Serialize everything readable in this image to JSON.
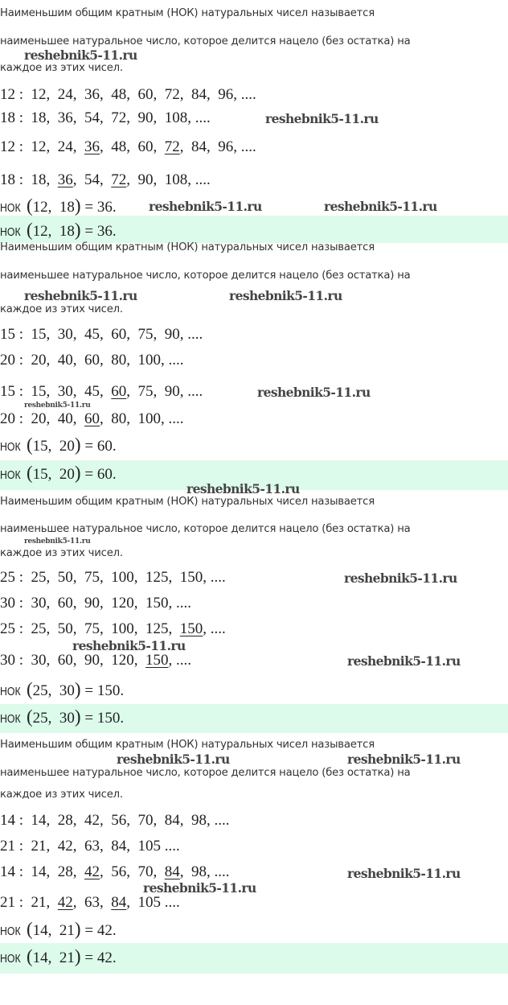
{
  "intro": [
    "Наименьшим общим кратным (НОК) натуральных чисел называется",
    "наименьшее натуральное число, которое делится нацело (без остатка) на",
    "каждое из этих чисел."
  ],
  "watermark": "reshebnik5-11.ru",
  "highlight_color": "#dcfbeb",
  "blocks": [
    {
      "rows": [
        {
          "label": "12",
          "items": [
            {
              "t": "12"
            },
            {
              "t": "24"
            },
            {
              "t": "36"
            },
            {
              "t": "48"
            },
            {
              "t": "60"
            },
            {
              "t": "72"
            },
            {
              "t": "84"
            },
            {
              "t": "96"
            }
          ],
          "end": ", ...."
        },
        {
          "label": "18",
          "items": [
            {
              "t": "18"
            },
            {
              "t": "36"
            },
            {
              "t": "54"
            },
            {
              "t": "72"
            },
            {
              "t": "90"
            },
            {
              "t": "108"
            }
          ],
          "end": ", ...."
        },
        {
          "label": "12",
          "items": [
            {
              "t": "12"
            },
            {
              "t": "24"
            },
            {
              "t": "36",
              "u": true
            },
            {
              "t": "48"
            },
            {
              "t": "60"
            },
            {
              "t": "72",
              "u": true
            },
            {
              "t": "84"
            },
            {
              "t": "96"
            }
          ],
          "end": ", ...."
        },
        {
          "label": "18",
          "items": [
            {
              "t": "18"
            },
            {
              "t": "36",
              "u": true
            },
            {
              "t": "54"
            },
            {
              "t": "72",
              "u": true
            },
            {
              "t": "90"
            },
            {
              "t": "108"
            }
          ],
          "end": ", ...."
        }
      ],
      "result": {
        "prefix": "НОК",
        "a": "12",
        "b": "18",
        "value": "36"
      }
    },
    {
      "rows": [
        {
          "label": "15",
          "items": [
            {
              "t": "15"
            },
            {
              "t": "30"
            },
            {
              "t": "45"
            },
            {
              "t": "60"
            },
            {
              "t": "75"
            },
            {
              "t": "90"
            }
          ],
          "end": ", ...."
        },
        {
          "label": "20",
          "items": [
            {
              "t": "20"
            },
            {
              "t": "40"
            },
            {
              "t": "60"
            },
            {
              "t": "80"
            },
            {
              "t": "100"
            }
          ],
          "end": ", ...."
        },
        {
          "label": "15",
          "items": [
            {
              "t": "15"
            },
            {
              "t": "30"
            },
            {
              "t": "45"
            },
            {
              "t": "60",
              "u": true
            },
            {
              "t": "75"
            },
            {
              "t": "90"
            }
          ],
          "end": ", ...."
        },
        {
          "label": "20",
          "items": [
            {
              "t": "20"
            },
            {
              "t": "40"
            },
            {
              "t": "60",
              "u": true
            },
            {
              "t": "80"
            },
            {
              "t": "100"
            }
          ],
          "end": ", ...."
        }
      ],
      "result": {
        "prefix": "НОК",
        "a": "15",
        "b": "20",
        "value": "60"
      }
    },
    {
      "rows": [
        {
          "label": "25",
          "items": [
            {
              "t": "25"
            },
            {
              "t": "50"
            },
            {
              "t": "75"
            },
            {
              "t": "100"
            },
            {
              "t": "125"
            },
            {
              "t": "150"
            }
          ],
          "end": ", ...."
        },
        {
          "label": "30",
          "items": [
            {
              "t": "30"
            },
            {
              "t": "60"
            },
            {
              "t": "90"
            },
            {
              "t": "120"
            },
            {
              "t": "150"
            }
          ],
          "end": ", ...."
        },
        {
          "label": "25",
          "items": [
            {
              "t": "25"
            },
            {
              "t": "50"
            },
            {
              "t": "75"
            },
            {
              "t": "100"
            },
            {
              "t": "125"
            },
            {
              "t": "150",
              "u": true
            }
          ],
          "end": ", ...."
        },
        {
          "label": "30",
          "items": [
            {
              "t": "30"
            },
            {
              "t": "60"
            },
            {
              "t": "90"
            },
            {
              "t": "120"
            },
            {
              "t": "150",
              "u": true
            }
          ],
          "end": ", ...."
        }
      ],
      "result": {
        "prefix": "НОК",
        "a": "25",
        "b": "30",
        "value": "150"
      }
    },
    {
      "rows": [
        {
          "label": "14",
          "items": [
            {
              "t": "14"
            },
            {
              "t": "28"
            },
            {
              "t": "42"
            },
            {
              "t": "56"
            },
            {
              "t": "70"
            },
            {
              "t": "84"
            },
            {
              "t": "98"
            }
          ],
          "end": ", ...."
        },
        {
          "label": "21",
          "items": [
            {
              "t": "21"
            },
            {
              "t": "42"
            },
            {
              "t": "63"
            },
            {
              "t": "84"
            },
            {
              "t": "105"
            }
          ],
          "end": " ...."
        },
        {
          "label": "14",
          "items": [
            {
              "t": "14"
            },
            {
              "t": "28"
            },
            {
              "t": "42",
              "u": true
            },
            {
              "t": "56"
            },
            {
              "t": "70"
            },
            {
              "t": "84",
              "u": true
            },
            {
              "t": "98"
            }
          ],
          "end": ", ...."
        },
        {
          "label": "21",
          "items": [
            {
              "t": "21"
            },
            {
              "t": "42",
              "u": true
            },
            {
              "t": "63"
            },
            {
              "t": "84",
              "u": true
            },
            {
              "t": "105"
            }
          ],
          "end": " ...."
        }
      ],
      "result": {
        "prefix": "НОК",
        "a": "14",
        "b": "21",
        "value": "42"
      }
    }
  ]
}
